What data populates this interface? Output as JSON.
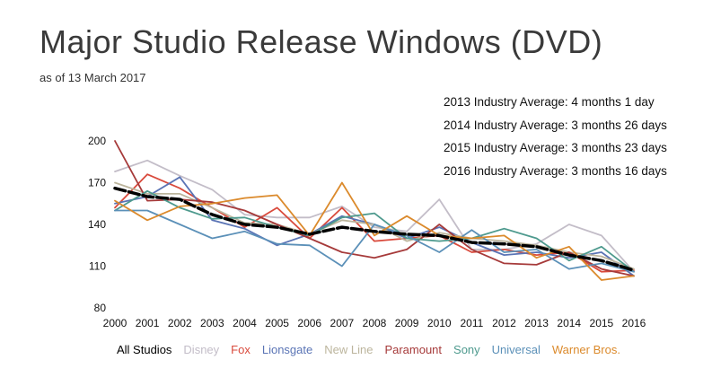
{
  "title": "Major Studio Release Windows (DVD)",
  "subtitle": "as of 13 March 2017",
  "industry_averages": [
    "2013 Industry Average: 4 months 1 day",
    "2014 Industry Average: 3 months 26 days",
    "2015 Industry Average: 3 months 23 days",
    "2016 Industry Average: 3 months 16 days"
  ],
  "chart_data": {
    "type": "line",
    "title": "Major Studio Release Windows (DVD)",
    "xlabel": "",
    "ylabel": "",
    "x": [
      2000,
      2001,
      2002,
      2003,
      2004,
      2005,
      2006,
      2007,
      2008,
      2009,
      2010,
      2011,
      2012,
      2013,
      2014,
      2015,
      2016
    ],
    "y_ticks": [
      80,
      110,
      140,
      170,
      200
    ],
    "ylim": [
      80,
      200
    ],
    "grid": false,
    "legend_position": "bottom",
    "series": [
      {
        "name": "All Studios",
        "color": "#000000",
        "values": [
          166,
          160,
          158,
          147,
          140,
          138,
          133,
          138,
          135,
          133,
          132,
          127,
          126,
          124,
          118,
          114,
          107
        ]
      },
      {
        "name": "Disney",
        "color": "#c3bdc8",
        "values": [
          178,
          186,
          175,
          165,
          147,
          145,
          145,
          153,
          138,
          135,
          158,
          122,
          122,
          126,
          140,
          132,
          106
        ]
      },
      {
        "name": "Fox",
        "color": "#d94a3c",
        "values": [
          152,
          176,
          166,
          152,
          138,
          152,
          130,
          152,
          128,
          130,
          132,
          120,
          122,
          118,
          120,
          106,
          107
        ]
      },
      {
        "name": "Lionsgate",
        "color": "#5a74b5",
        "values": [
          155,
          160,
          174,
          143,
          137,
          125,
          133,
          146,
          140,
          130,
          138,
          127,
          118,
          120,
          116,
          120,
          103
        ]
      },
      {
        "name": "New Line",
        "color": "#bcb59d",
        "values": [
          170,
          162,
          162,
          152,
          141,
          140,
          133,
          143,
          140,
          128,
          134,
          130,
          128,
          125,
          120,
          117,
          108
        ]
      },
      {
        "name": "Paramount",
        "color": "#a63a3a",
        "values": [
          200,
          157,
          158,
          156,
          150,
          140,
          130,
          120,
          116,
          122,
          140,
          122,
          112,
          111,
          120,
          108,
          103
        ]
      },
      {
        "name": "Sony",
        "color": "#4e9a8e",
        "values": [
          150,
          164,
          152,
          144,
          145,
          138,
          132,
          145,
          148,
          130,
          128,
          130,
          137,
          130,
          114,
          124,
          106
        ]
      },
      {
        "name": "Universal",
        "color": "#5b90b8",
        "values": [
          150,
          150,
          140,
          130,
          135,
          126,
          125,
          110,
          140,
          132,
          120,
          136,
          120,
          122,
          108,
          112,
          106
        ]
      },
      {
        "name": "Warner Bros.",
        "color": "#db8a2c",
        "values": [
          157,
          143,
          153,
          155,
          159,
          161,
          132,
          170,
          132,
          146,
          132,
          130,
          132,
          116,
          124,
          100,
          103
        ]
      }
    ]
  }
}
